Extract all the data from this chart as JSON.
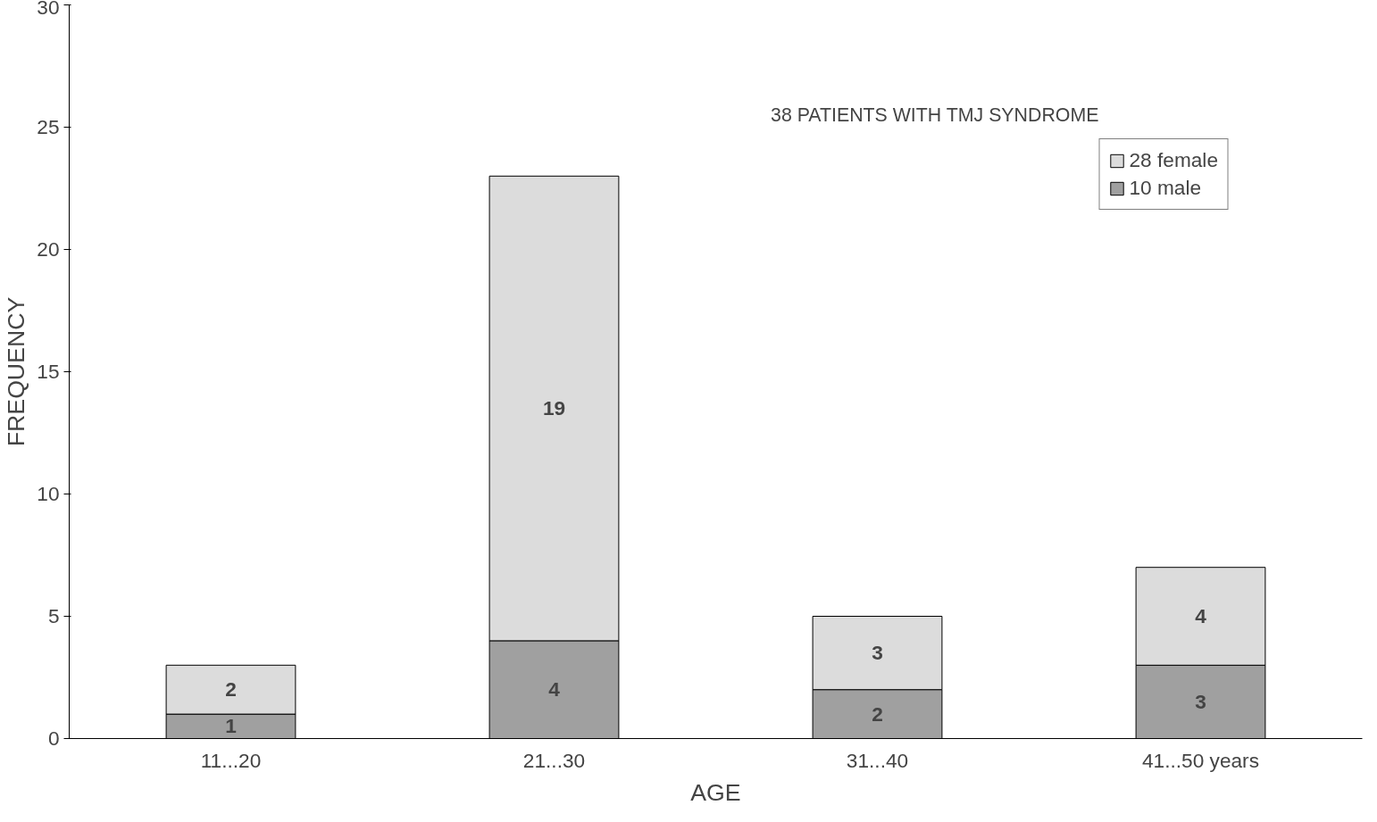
{
  "chart_data": {
    "type": "bar",
    "title": "38 PATIENTS WITH TMJ SYNDROME",
    "xlabel": "AGE",
    "ylabel": "FREQUENCY",
    "categories": [
      "11...20",
      "21...30",
      "31...40",
      "41...50 years"
    ],
    "series": [
      {
        "name": "10 male",
        "color": "#a0a0a0",
        "values": [
          1,
          4,
          2,
          3
        ]
      },
      {
        "name": "28 female",
        "color": "#dcdcdc",
        "values": [
          2,
          19,
          3,
          4
        ]
      }
    ],
    "stacked": true,
    "ylim": [
      0,
      30
    ],
    "yticks": [
      0,
      5,
      10,
      15,
      20,
      25,
      30
    ],
    "grid": false,
    "legend": "top right",
    "data_labels": true
  }
}
